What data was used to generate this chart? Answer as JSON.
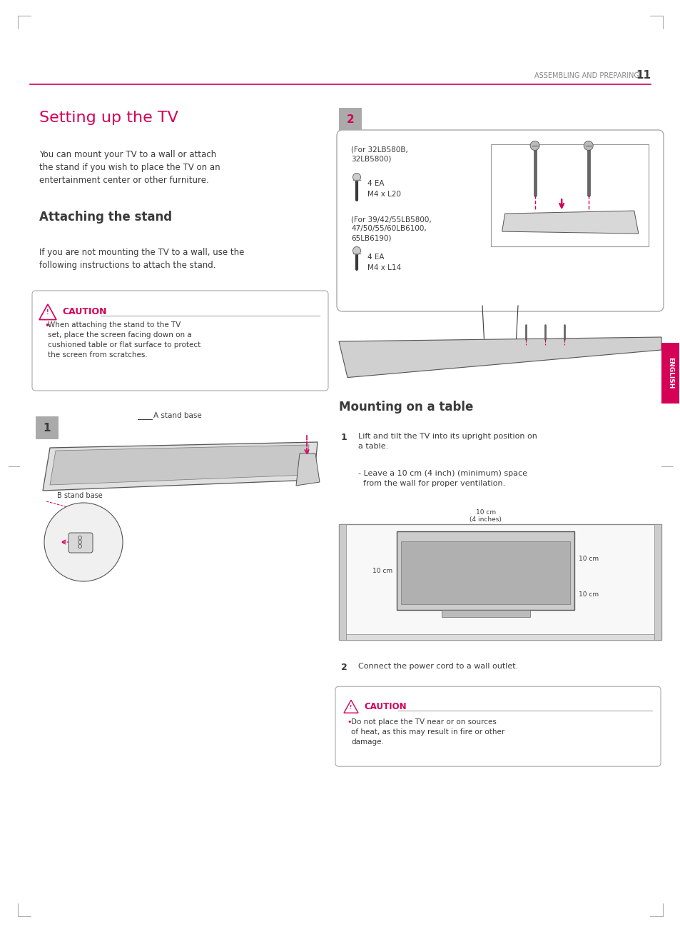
{
  "bg_color": "#ffffff",
  "page_width": 9.54,
  "page_height": 13.05,
  "pink_color": "#d60057",
  "dark_text": "#3a3a3a",
  "gray_text": "#888888",
  "header_text": "ASSEMBLING AND PREPARING",
  "header_number": "11",
  "title_setting": "Setting up the TV",
  "body1": "You can mount your TV to a wall or attach\nthe stand if you wish to place the TV on an\nentertainment center or other furniture.",
  "subtitle_stand": "Attaching the stand",
  "body2": "If you are not mounting the TV to a wall, use the\nfollowing instructions to attach the stand.",
  "caution_title": "CAUTION",
  "caution_text": "When attaching the stand to the TV\nset, place the screen facing down on a\ncushioned table or flat surface to protect\nthe screen from scratches.",
  "step1_label": "1",
  "step2_label": "2",
  "screw_box_text1": "(For 32LB580B,\n32LB5800)",
  "screw_text1": "4 EA\nM4 x L20",
  "screw_box_text2": "(For 39/42/55LB5800,\n47/50/55/60LB6100,\n65LB6190)",
  "screw_text2": "4 EA\nM4 x L14",
  "mounting_title": "Mounting on a table",
  "mounting_step1": "Lift and tilt the TV into its upright position on\na table.",
  "mounting_step1b": "- Leave a 10 cm (4 inch) (minimum) space\n  from the wall for proper ventilation.",
  "mounting_step2": "Connect the power cord to a wall outlet.",
  "caution2_text": "Do not place the TV near or on sources\nof heat, as this may result in fire or other\ndamage.",
  "english_label": "ENGLISH"
}
